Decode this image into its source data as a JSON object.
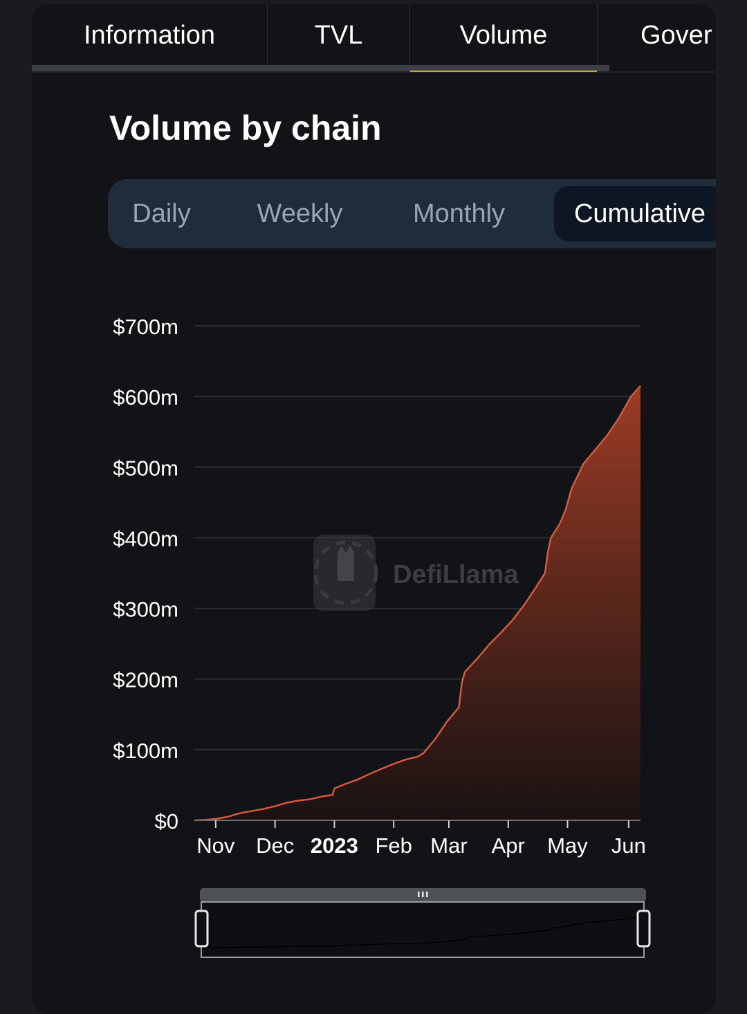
{
  "tabs": [
    "Information",
    "TVL",
    "Volume",
    "Gover"
  ],
  "title": "Volume by chain",
  "segments": [
    "Daily",
    "Weekly",
    "Monthly",
    "Cumulative"
  ],
  "watermark": "DefiLlama",
  "colors": {
    "line": "#d9583a",
    "fill_top": "#a33e26",
    "accent": "#b9ad3a"
  },
  "chart_data": {
    "type": "area",
    "x_unit": "month",
    "ylim": [
      0,
      700
    ],
    "y_ticks": [
      0,
      100,
      200,
      300,
      400,
      500,
      600,
      700
    ],
    "y_tick_labels": [
      "$0",
      "$100m",
      "$200m",
      "$300m",
      "$400m",
      "$500m",
      "$600m",
      "$700m"
    ],
    "x_ticks": [
      {
        "label": "Nov",
        "pos": 1.0,
        "bold": false
      },
      {
        "label": "Dec",
        "pos": 2.0,
        "bold": false
      },
      {
        "label": "2023",
        "pos": 3.0,
        "bold": true
      },
      {
        "label": "Feb",
        "pos": 4.0,
        "bold": false
      },
      {
        "label": "Mar",
        "pos": 4.93,
        "bold": false
      },
      {
        "label": "Apr",
        "pos": 5.93,
        "bold": false
      },
      {
        "label": "May",
        "pos": 6.93,
        "bold": false
      },
      {
        "label": "Jun",
        "pos": 7.96,
        "bold": false
      }
    ],
    "xlim": [
      0.64,
      8.16
    ],
    "series": [
      {
        "points": [
          [
            0.64,
            0
          ],
          [
            0.8,
            0.5
          ],
          [
            1.0,
            2
          ],
          [
            1.2,
            5
          ],
          [
            1.4,
            10
          ],
          [
            1.6,
            13
          ],
          [
            1.8,
            16
          ],
          [
            2.0,
            20
          ],
          [
            2.2,
            25
          ],
          [
            2.4,
            28
          ],
          [
            2.6,
            30
          ],
          [
            2.8,
            34
          ],
          [
            2.97,
            36
          ],
          [
            3.0,
            45
          ],
          [
            3.2,
            52
          ],
          [
            3.4,
            58
          ],
          [
            3.6,
            66
          ],
          [
            3.8,
            73
          ],
          [
            4.0,
            80
          ],
          [
            4.2,
            86
          ],
          [
            4.4,
            90
          ],
          [
            4.5,
            95
          ],
          [
            4.7,
            115
          ],
          [
            4.9,
            140
          ],
          [
            5.0,
            150
          ],
          [
            5.1,
            160
          ],
          [
            5.15,
            195
          ],
          [
            5.2,
            210
          ],
          [
            5.4,
            228
          ],
          [
            5.6,
            248
          ],
          [
            5.8,
            265
          ],
          [
            6.0,
            283
          ],
          [
            6.2,
            305
          ],
          [
            6.4,
            330
          ],
          [
            6.55,
            350
          ],
          [
            6.6,
            380
          ],
          [
            6.65,
            400
          ],
          [
            6.8,
            420
          ],
          [
            6.9,
            440
          ],
          [
            7.0,
            470
          ],
          [
            7.2,
            505
          ],
          [
            7.4,
            525
          ],
          [
            7.6,
            545
          ],
          [
            7.8,
            570
          ],
          [
            8.0,
            600
          ],
          [
            8.16,
            615
          ]
        ]
      }
    ]
  }
}
